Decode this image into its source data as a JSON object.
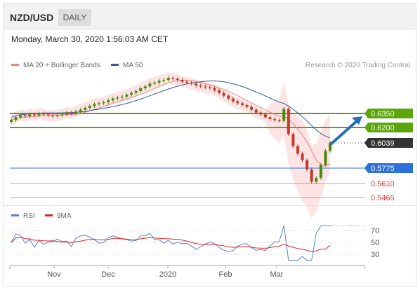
{
  "header": {
    "symbol": "NZD/USD",
    "timeframe": "DAILY"
  },
  "datetime": "Monday, March 30, 2020 1:56:03 AM CET",
  "legend": {
    "ma20": {
      "label": "MA 20 + Bollinger Bands",
      "color": "#f08080"
    },
    "ma50": {
      "label": "MA 50",
      "color": "#2f5d9e"
    }
  },
  "credit": "Research © 2020 Trading Central",
  "price_levels": [
    {
      "label": "0.6350",
      "kind": "resistance",
      "color": "#5aa50a"
    },
    {
      "label": "0.6200",
      "kind": "resistance",
      "color": "#5aa50a"
    },
    {
      "label": "0.6039",
      "kind": "last",
      "color": "#333333"
    },
    {
      "label": "0.5775",
      "kind": "pivot",
      "color": "#2e6fd8"
    },
    {
      "label": "0.5610",
      "kind": "support",
      "color": "#e03030"
    },
    {
      "label": "0.5465",
      "kind": "support",
      "color": "#e03030"
    }
  ],
  "rsi": {
    "legend_rsi": "RSI",
    "legend_rsi_color": "#5b7fd6",
    "legend_ma": "9MA",
    "legend_ma_color": "#e02020",
    "levels": [
      "70",
      "50",
      "30"
    ]
  },
  "x_axis": [
    "Nov",
    "Dec",
    "2020",
    "Feb",
    "Mar"
  ],
  "colors": {
    "up_candle": "#4a8a0a",
    "down_candle": "#c0392b",
    "band_fill": "#fde4e4",
    "arrow": "#2a6fb8"
  },
  "chart_data": {
    "type": "candlestick",
    "series": [
      {
        "name": "MA 20 + Bollinger Bands"
      },
      {
        "name": "MA 50"
      }
    ],
    "price_levels": [
      0.635,
      0.62,
      0.6039,
      0.5775,
      0.561,
      0.5465
    ],
    "last_price": 0.6039,
    "projected_direction": "up",
    "x_ticks": [
      "Nov",
      "Dec",
      "2020",
      "Feb",
      "Mar"
    ],
    "rsi_levels": [
      70,
      50,
      30
    ],
    "close_approx": [
      0.628,
      0.631,
      0.633,
      0.632,
      0.634,
      0.633,
      0.635,
      0.634,
      0.633,
      0.632,
      0.633,
      0.634,
      0.636,
      0.635,
      0.637,
      0.639,
      0.641,
      0.643,
      0.645,
      0.646,
      0.647,
      0.649,
      0.651,
      0.652,
      0.653,
      0.655,
      0.657,
      0.659,
      0.662,
      0.664,
      0.667,
      0.668,
      0.67,
      0.671,
      0.673,
      0.672,
      0.671,
      0.669,
      0.668,
      0.667,
      0.665,
      0.664,
      0.663,
      0.662,
      0.66,
      0.657,
      0.654,
      0.651,
      0.648,
      0.646,
      0.644,
      0.642,
      0.639,
      0.636,
      0.634,
      0.631,
      0.629,
      0.628,
      0.627,
      0.64,
      0.613,
      0.6,
      0.592,
      0.585,
      0.575,
      0.562,
      0.566,
      0.58,
      0.595,
      0.6039
    ]
  }
}
